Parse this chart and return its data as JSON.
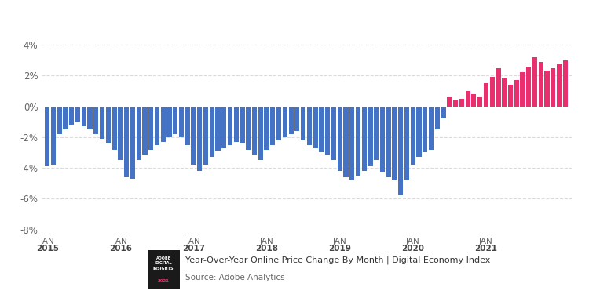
{
  "values": [
    -3.9,
    -3.8,
    -1.8,
    -1.5,
    -1.2,
    -1.0,
    -1.3,
    -1.5,
    -1.8,
    -2.1,
    -2.4,
    -2.8,
    -3.5,
    -4.6,
    -4.7,
    -3.5,
    -3.2,
    -2.8,
    -2.5,
    -2.3,
    -2.0,
    -1.8,
    -2.0,
    -2.5,
    -3.8,
    -4.2,
    -3.8,
    -3.3,
    -2.9,
    -2.7,
    -2.5,
    -2.3,
    -2.4,
    -2.8,
    -3.2,
    -3.5,
    -2.8,
    -2.5,
    -2.2,
    -2.0,
    -1.8,
    -1.6,
    -2.2,
    -2.5,
    -2.7,
    -3.0,
    -3.2,
    -3.5,
    -4.2,
    -4.6,
    -4.8,
    -4.5,
    -4.2,
    -3.9,
    -3.5,
    -4.3,
    -4.6,
    -4.8,
    -5.8,
    -4.8,
    -3.8,
    -3.3,
    -3.0,
    -2.8,
    -1.5,
    -0.8,
    0.6,
    0.4,
    0.5,
    1.0,
    0.8,
    0.6,
    1.5,
    1.9,
    2.5,
    1.8,
    1.4,
    1.7,
    2.2,
    2.6,
    3.2,
    2.9,
    2.3,
    2.5,
    2.8,
    3.0
  ],
  "colors_blue": "#4472c4",
  "colors_pink": "#e8306e",
  "cutoff_index": 66,
  "ylim": [
    -8,
    5
  ],
  "yticks": [
    -8,
    -6,
    -4,
    -2,
    0,
    2,
    4
  ],
  "title": "Year-Over-Year Online Price Change By Month | Digital Economy Index",
  "source": "Source: Adobe Analytics",
  "xlabel_ticks": [
    0,
    12,
    24,
    36,
    48,
    60,
    66,
    72,
    78,
    84
  ],
  "xlabel_labels": [
    "JAN 2015",
    "JAN 2016",
    "JAN 2017",
    "JAN 2018",
    "JAN 2019",
    "JAN 2020",
    "JAN 2021"
  ],
  "background_color": "#ffffff",
  "grid_color": "#cccccc"
}
